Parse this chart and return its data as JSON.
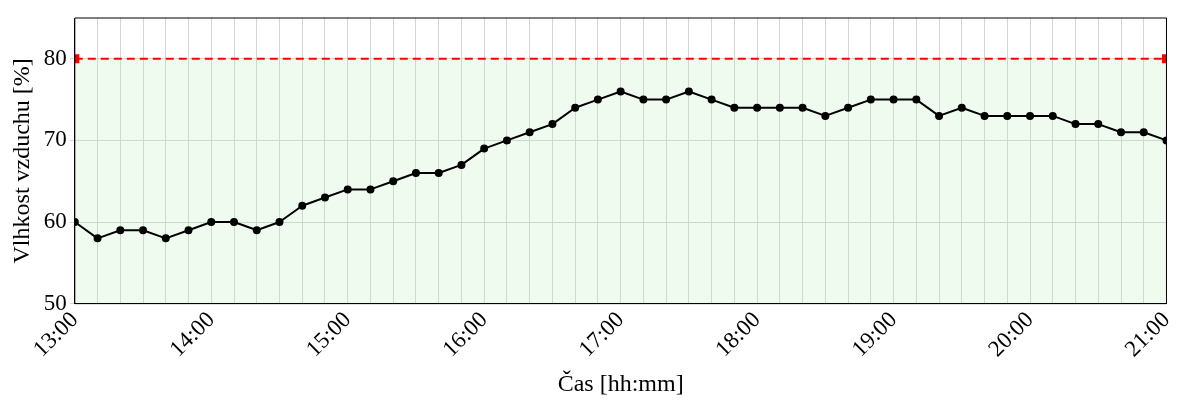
{
  "chart_data": {
    "type": "line",
    "xlabel": "Čas [hh:mm]",
    "ylabel": "Vlhkost vzduchu [%]",
    "x": [
      13,
      13.1667,
      13.3333,
      13.5,
      13.6667,
      13.8333,
      14,
      14.1667,
      14.3333,
      14.5,
      14.6667,
      14.8333,
      15,
      15.1667,
      15.3333,
      15.5,
      15.6667,
      15.8333,
      16,
      16.1667,
      16.3333,
      16.5,
      16.6667,
      16.8333,
      17,
      17.1667,
      17.3333,
      17.5,
      17.6667,
      17.8333,
      18,
      18.1667,
      18.3333,
      18.5,
      18.6667,
      18.8333,
      19,
      19.1667,
      19.3333,
      19.5,
      19.6667,
      19.8333,
      20,
      20.1667,
      20.3333,
      20.5,
      20.6667,
      20.8333,
      21
    ],
    "series": [
      {
        "color": "#000000",
        "values": [
          60,
          58,
          59,
          59,
          58,
          59,
          60,
          60,
          59,
          60,
          62,
          63,
          64,
          64,
          65,
          66,
          66,
          67,
          69,
          70,
          71,
          72,
          74,
          75,
          76,
          75,
          75,
          76,
          75,
          74,
          74,
          74,
          74,
          73,
          74,
          75,
          75,
          75,
          73,
          74,
          73,
          73,
          73,
          73,
          72,
          72,
          71,
          71,
          70
        ]
      },
      {
        "type": "scatter",
        "color": "#ff0000",
        "marker": "square",
        "x": [
          13,
          21
        ],
        "values": [
          80,
          80
        ]
      }
    ],
    "xlim": [
      13,
      21
    ],
    "xticks": [
      {
        "value": 13,
        "label": "13:00"
      },
      {
        "value": 13.1667,
        "label": null
      },
      {
        "value": 13.3333,
        "label": null
      },
      {
        "value": 13.5,
        "label": null
      },
      {
        "value": 13.6667,
        "label": null
      },
      {
        "value": 13.8333,
        "label": null
      },
      {
        "value": 14,
        "label": "14:00"
      },
      {
        "value": 14.1667,
        "label": null
      },
      {
        "value": 14.3333,
        "label": null
      },
      {
        "value": 14.5,
        "label": null
      },
      {
        "value": 14.6667,
        "label": null
      },
      {
        "value": 14.8333,
        "label": null
      },
      {
        "value": 15,
        "label": "15:00"
      },
      {
        "value": 15.1667,
        "label": null
      },
      {
        "value": 15.3333,
        "label": null
      },
      {
        "value": 15.5,
        "label": null
      },
      {
        "value": 15.6667,
        "label": null
      },
      {
        "value": 15.8333,
        "label": null
      },
      {
        "value": 16,
        "label": "16:00"
      },
      {
        "value": 16.1667,
        "label": null
      },
      {
        "value": 16.3333,
        "label": null
      },
      {
        "value": 16.5,
        "label": null
      },
      {
        "value": 16.6667,
        "label": null
      },
      {
        "value": 16.8333,
        "label": null
      },
      {
        "value": 17,
        "label": "17:00"
      },
      {
        "value": 17.1667,
        "label": null
      },
      {
        "value": 17.3333,
        "label": null
      },
      {
        "value": 17.5,
        "label": null
      },
      {
        "value": 17.6667,
        "label": null
      },
      {
        "value": 17.8333,
        "label": null
      },
      {
        "value": 18,
        "label": "18:00"
      },
      {
        "value": 18.1667,
        "label": null
      },
      {
        "value": 18.3333,
        "label": null
      },
      {
        "value": 18.5,
        "label": null
      },
      {
        "value": 18.6667,
        "label": null
      },
      {
        "value": 18.8333,
        "label": null
      },
      {
        "value": 19,
        "label": "19:00"
      },
      {
        "value": 19.1667,
        "label": null
      },
      {
        "value": 19.3333,
        "label": null
      },
      {
        "value": 19.5,
        "label": null
      },
      {
        "value": 19.6667,
        "label": null
      },
      {
        "value": 19.8333,
        "label": null
      },
      {
        "value": 20,
        "label": "20:00"
      },
      {
        "value": 20.1667,
        "label": null
      },
      {
        "value": 20.3333,
        "label": null
      },
      {
        "value": 20.5,
        "label": null
      },
      {
        "value": 20.6667,
        "label": null
      },
      {
        "value": 20.8333,
        "label": null
      },
      {
        "value": 21,
        "label": "21:00"
      }
    ],
    "ylim": [
      50,
      85
    ],
    "yticks": [
      50,
      60,
      70,
      80
    ],
    "ref_lines": [
      {
        "axis": "y",
        "value": 80,
        "label": null,
        "color": "#ff0000",
        "line_style": "dashed"
      }
    ],
    "bands": [
      {
        "axis": "y",
        "from": 50,
        "to": 80,
        "label": null,
        "color": "#effbee"
      }
    ],
    "grid": true,
    "marker": "circle",
    "line_style": "solid",
    "legend": false
  }
}
